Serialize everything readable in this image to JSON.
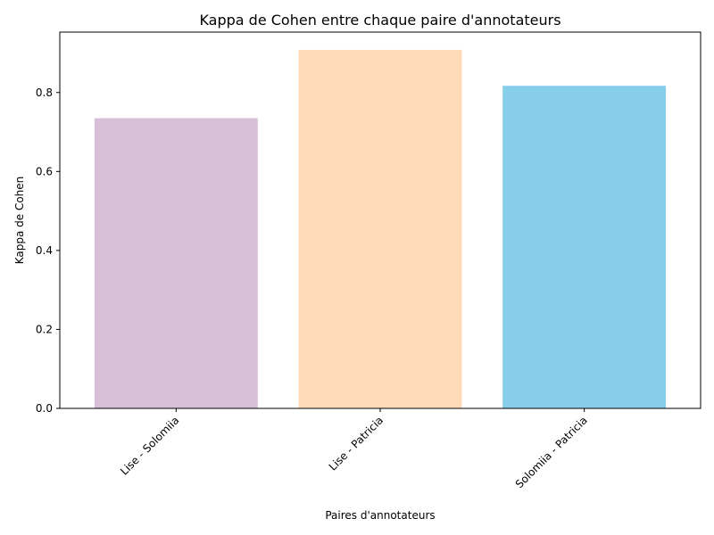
{
  "chart_data": {
    "type": "bar",
    "title": "Kappa de Cohen entre chaque paire d'annotateurs",
    "xlabel": "Paires d'annotateurs",
    "ylabel": "Kappa de Cohen",
    "categories": [
      "Lise - Solomiia",
      "Lise - Patricia",
      "Solomiia - Patricia"
    ],
    "values": [
      0.735,
      0.908,
      0.817
    ],
    "colors": [
      "#d8bfd8",
      "#ffdab9",
      "#87ceeb"
    ],
    "ylim": [
      0,
      0.953
    ],
    "yticks": [
      0.0,
      0.2,
      0.4,
      0.6,
      0.8
    ],
    "ytick_labels": [
      "0.0",
      "0.2",
      "0.4",
      "0.6",
      "0.8"
    ],
    "grid": false,
    "legend": "none"
  }
}
